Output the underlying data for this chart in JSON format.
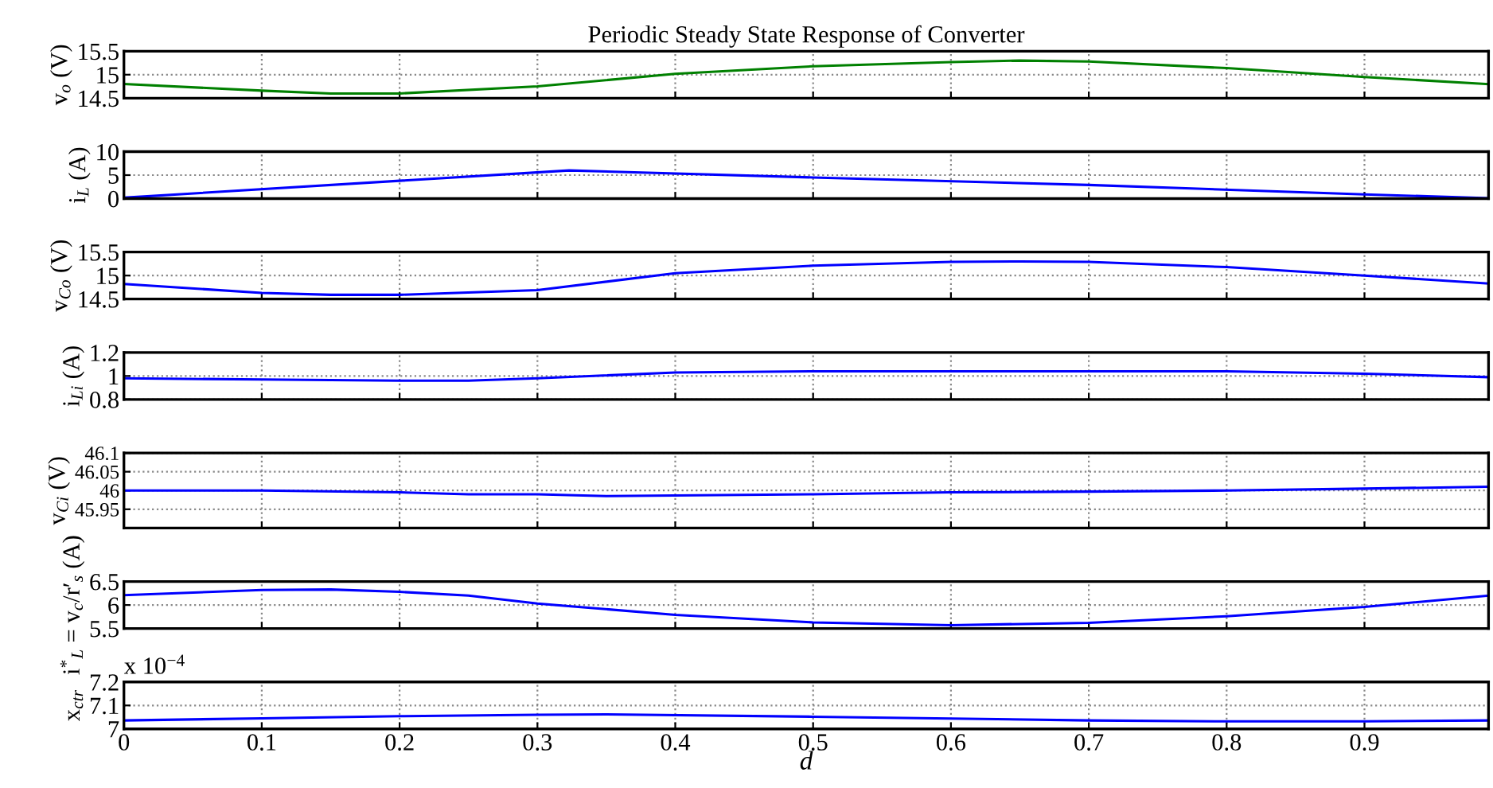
{
  "chart_data": [
    {
      "type": "line",
      "title": "Periodic Steady State Response of Converter",
      "ylabel": "v$_{o}$ (V)",
      "x": [
        0,
        0.1,
        0.15,
        0.2,
        0.3,
        0.4,
        0.5,
        0.6,
        0.65,
        0.7,
        0.8,
        0.9,
        0.99
      ],
      "series": [
        {
          "color": "#008000",
          "values": [
            14.8,
            14.66,
            14.6,
            14.6,
            14.75,
            15.02,
            15.18,
            15.27,
            15.3,
            15.28,
            15.14,
            14.95,
            14.8
          ]
        }
      ],
      "xlim": [
        0,
        0.99
      ],
      "ylim": [
        14.5,
        15.5
      ],
      "xticks": [
        0,
        0.1,
        0.2,
        0.3,
        0.4,
        0.5,
        0.6,
        0.7,
        0.8,
        0.9
      ],
      "yticks": [
        14.5,
        15,
        15.5
      ],
      "grid": true,
      "tick_labels": "y"
    },
    {
      "type": "line",
      "ylabel": "i$_{L}$ (A)",
      "x": [
        0,
        0.323,
        0.5,
        0.7,
        0.9,
        0.99
      ],
      "series": [
        {
          "color": "#0000ff",
          "values": [
            0.2,
            6.0,
            4.5,
            2.9,
            0.9,
            0.1
          ]
        }
      ],
      "xlim": [
        0,
        0.99
      ],
      "ylim": [
        0,
        10
      ],
      "xticks": [
        0,
        0.1,
        0.2,
        0.3,
        0.4,
        0.5,
        0.6,
        0.7,
        0.8,
        0.9
      ],
      "yticks": [
        0,
        5,
        10
      ],
      "grid": true,
      "tick_labels": "y"
    },
    {
      "type": "line",
      "ylabel": "v$_{Co}$ (V)",
      "x": [
        0,
        0.1,
        0.15,
        0.2,
        0.3,
        0.4,
        0.5,
        0.6,
        0.65,
        0.7,
        0.8,
        0.9,
        0.99
      ],
      "series": [
        {
          "color": "#0000ff",
          "values": [
            14.82,
            14.63,
            14.59,
            14.59,
            14.69,
            15.05,
            15.21,
            15.29,
            15.3,
            15.29,
            15.18,
            15.0,
            14.83
          ]
        }
      ],
      "xlim": [
        0,
        0.99
      ],
      "ylim": [
        14.5,
        15.5
      ],
      "xticks": [
        0,
        0.1,
        0.2,
        0.3,
        0.4,
        0.5,
        0.6,
        0.7,
        0.8,
        0.9
      ],
      "yticks": [
        14.5,
        15,
        15.5
      ],
      "grid": true,
      "tick_labels": "y"
    },
    {
      "type": "line",
      "ylabel": "i$_{Li}$ (A)",
      "x": [
        0,
        0.1,
        0.2,
        0.25,
        0.3,
        0.4,
        0.5,
        0.6,
        0.7,
        0.8,
        0.9,
        0.99
      ],
      "series": [
        {
          "color": "#0000ff",
          "values": [
            0.98,
            0.97,
            0.96,
            0.96,
            0.98,
            1.03,
            1.04,
            1.04,
            1.04,
            1.04,
            1.02,
            0.99
          ]
        }
      ],
      "xlim": [
        0,
        0.99
      ],
      "ylim": [
        0.8,
        1.2
      ],
      "xticks": [
        0,
        0.1,
        0.2,
        0.3,
        0.4,
        0.5,
        0.6,
        0.7,
        0.8,
        0.9
      ],
      "yticks": [
        0.8,
        1,
        1.2
      ],
      "grid": true,
      "tick_labels": "y"
    },
    {
      "type": "line",
      "ylabel": "v$_{Ci}$ (V)",
      "x": [
        0,
        0.1,
        0.2,
        0.25,
        0.3,
        0.35,
        0.5,
        0.6,
        0.7,
        0.8,
        0.9,
        0.99
      ],
      "series": [
        {
          "color": "#0000ff",
          "values": [
            46.0,
            46.0,
            45.995,
            45.99,
            45.99,
            45.985,
            45.99,
            45.995,
            45.997,
            46.0,
            46.005,
            46.01
          ]
        }
      ],
      "xlim": [
        0,
        0.99
      ],
      "ylim": [
        45.9,
        46.1
      ],
      "xticks": [
        0,
        0.1,
        0.2,
        0.3,
        0.4,
        0.5,
        0.6,
        0.7,
        0.8,
        0.9
      ],
      "yticks": [
        45.95,
        46,
        46.05,
        46.1
      ],
      "grid": true,
      "tick_labels": "y"
    },
    {
      "type": "line",
      "ylabel": "i$^{*}$$_{L}$ = v$_{c}$/r′$_{s}$ (A)",
      "x": [
        0,
        0.1,
        0.15,
        0.2,
        0.25,
        0.3,
        0.4,
        0.5,
        0.6,
        0.7,
        0.8,
        0.9,
        0.99
      ],
      "series": [
        {
          "color": "#0000ff",
          "values": [
            6.21,
            6.32,
            6.33,
            6.28,
            6.2,
            6.03,
            5.79,
            5.63,
            5.57,
            5.62,
            5.76,
            5.96,
            6.2
          ]
        }
      ],
      "xlim": [
        0,
        0.99
      ],
      "ylim": [
        5.5,
        6.5
      ],
      "xticks": [
        0,
        0.1,
        0.2,
        0.3,
        0.4,
        0.5,
        0.6,
        0.7,
        0.8,
        0.9
      ],
      "yticks": [
        5.5,
        6,
        6.5
      ],
      "grid": true,
      "tick_labels": "y"
    },
    {
      "type": "line",
      "ylabel": "x$_{ctr}$",
      "xlabel": "d",
      "annotations": [
        "x 10$^{−4}$"
      ],
      "x": [
        0,
        0.1,
        0.2,
        0.3,
        0.35,
        0.5,
        0.6,
        0.7,
        0.8,
        0.9,
        0.99
      ],
      "series": [
        {
          "color": "#0000ff",
          "values": [
            7.036,
            7.045,
            7.054,
            7.06,
            7.062,
            7.052,
            7.044,
            7.036,
            7.032,
            7.032,
            7.036
          ]
        }
      ],
      "xlim": [
        0,
        0.99
      ],
      "ylim": [
        7,
        7.2
      ],
      "xticks": [
        0,
        0.1,
        0.2,
        0.3,
        0.4,
        0.5,
        0.6,
        0.7,
        0.8,
        0.9
      ],
      "yticks": [
        7,
        7.1,
        7.2
      ],
      "grid": true
    }
  ]
}
